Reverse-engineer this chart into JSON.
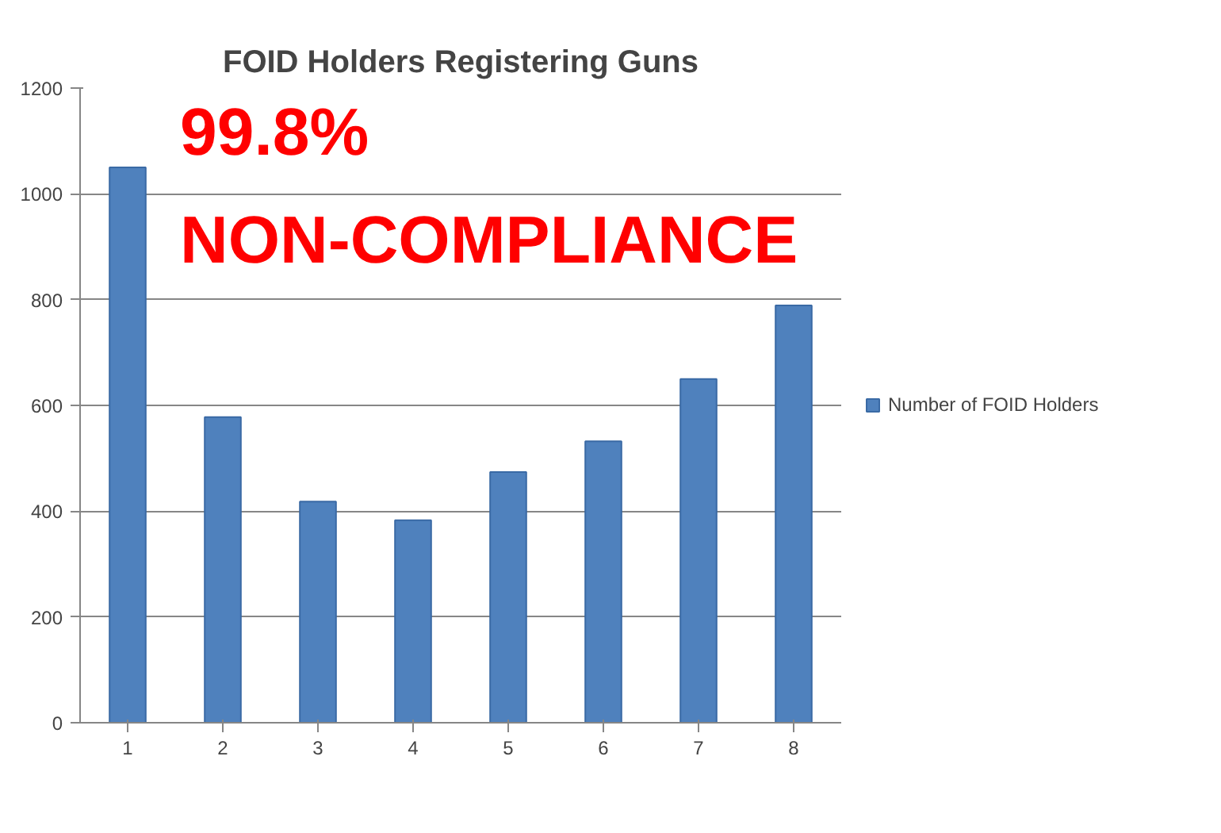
{
  "chart_data": {
    "type": "bar",
    "title": "FOID Holders Registering Guns",
    "categories": [
      "1",
      "2",
      "3",
      "4",
      "5",
      "6",
      "7",
      "8"
    ],
    "series": [
      {
        "name": "Number of FOID Holders",
        "color": "#4f81bd",
        "values": [
          1050,
          578,
          418,
          383,
          474,
          532,
          650,
          789
        ]
      }
    ],
    "ylim": [
      0,
      1200
    ],
    "yticks": [
      0,
      200,
      400,
      600,
      800,
      1000,
      1200
    ],
    "grid": "y",
    "legend": "right",
    "annotations": [
      "99.8%",
      "NON-COMPLIANCE"
    ]
  }
}
